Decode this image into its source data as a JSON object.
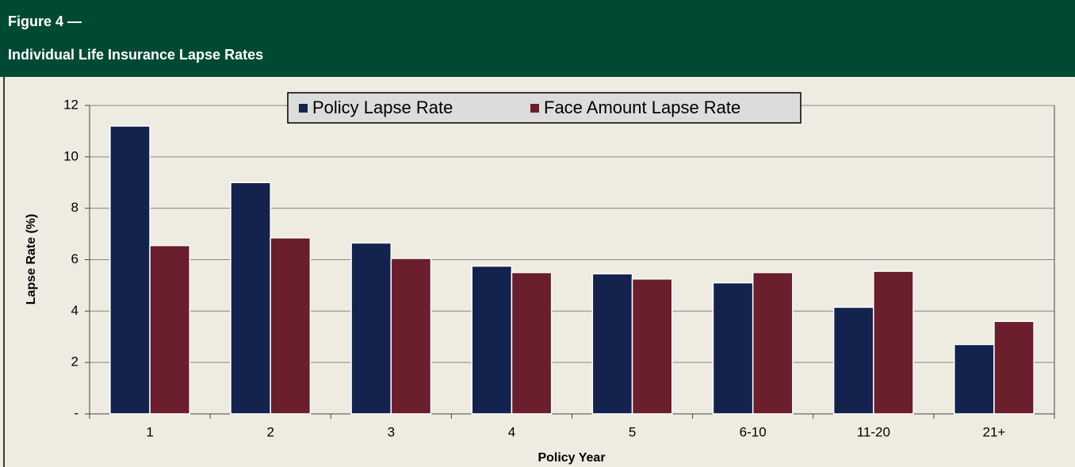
{
  "chart_data": {
    "type": "bar",
    "figure_label": "Figure 4 —",
    "title": "Individual Life Insurance Lapse Rates",
    "x_label": "Policy Year",
    "y_label": "Lapse Rate (%)",
    "categories": [
      "1",
      "2",
      "3",
      "4",
      "5",
      "6-10",
      "11-20",
      "21+"
    ],
    "series": [
      {
        "name": "Policy Lapse Rate",
        "color": "#13234e",
        "values": [
          11.2,
          9.0,
          6.65,
          5.75,
          5.45,
          5.1,
          4.15,
          2.7
        ]
      },
      {
        "name": "Face Amount Lapse Rate",
        "color": "#6b1e2b",
        "values": [
          6.55,
          6.85,
          6.05,
          5.5,
          5.25,
          5.5,
          5.55,
          3.6
        ]
      }
    ],
    "ylim": [
      0,
      12
    ],
    "yticks": [
      {
        "value": 0,
        "label": "-"
      },
      2,
      4,
      6,
      8,
      10,
      12
    ],
    "grid": true,
    "legend": "top"
  }
}
